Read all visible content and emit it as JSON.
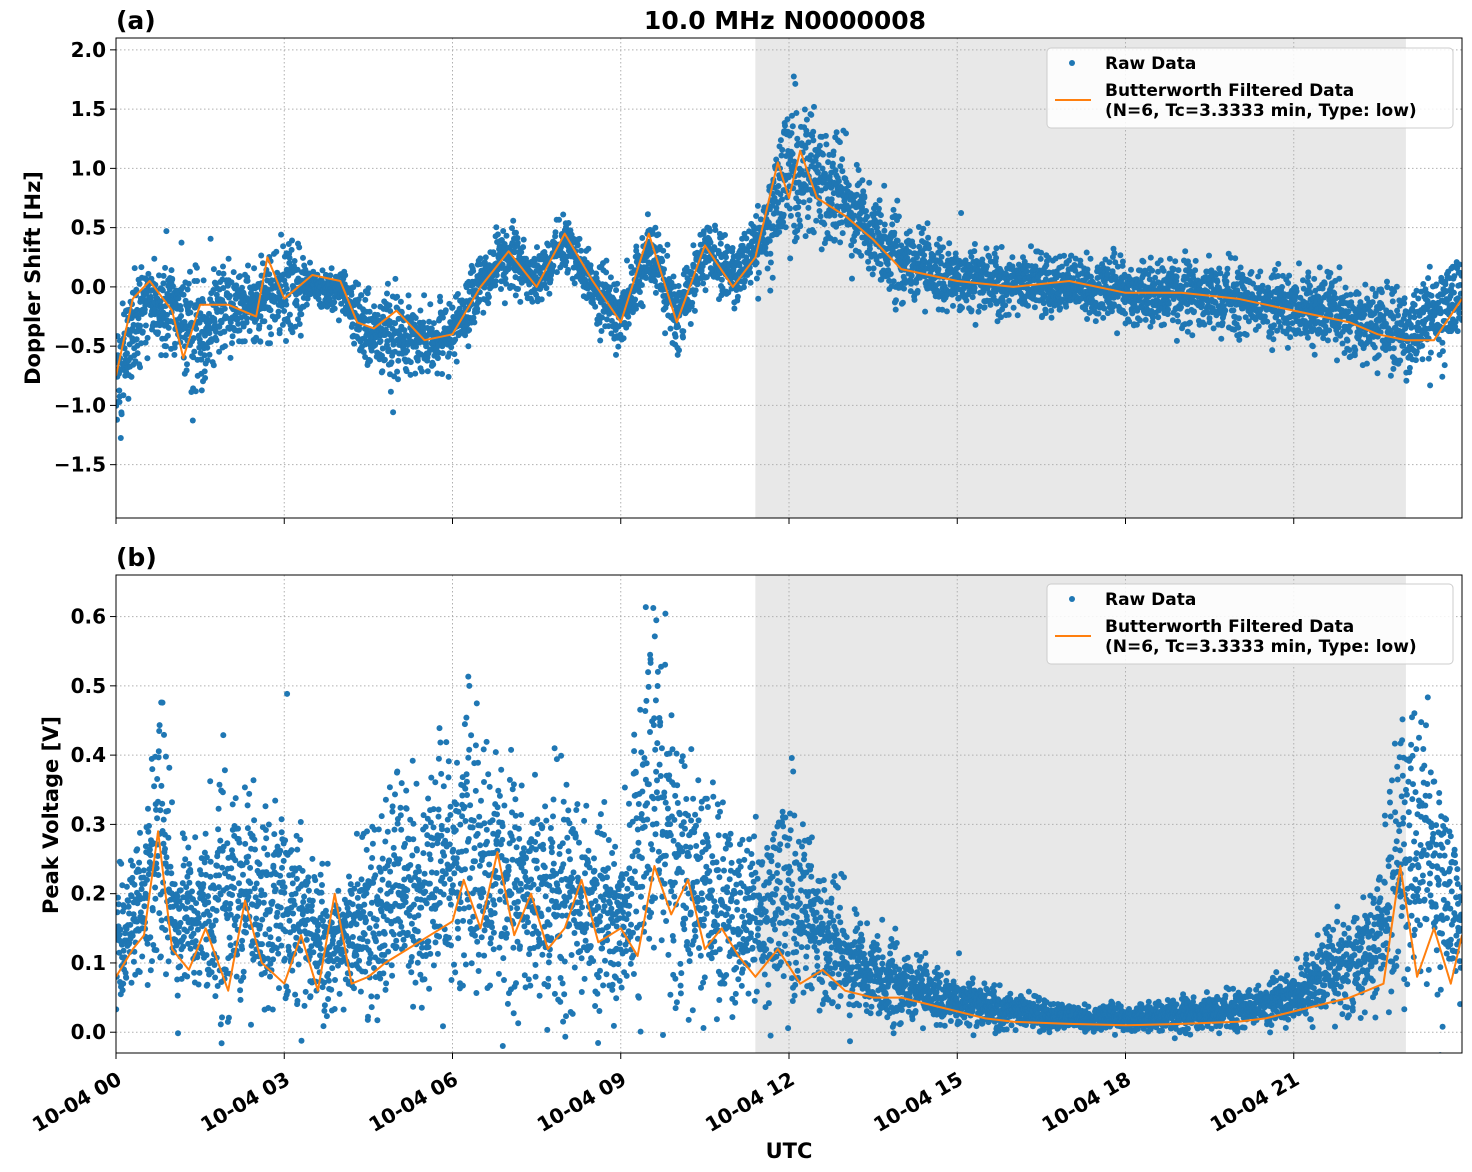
{
  "title": "10.0 MHz N0000008",
  "xlabel": "UTC",
  "x_ticks": [
    "10-04 00",
    "10-04 03",
    "10-04 06",
    "10-04 09",
    "10-04 12",
    "10-04 15",
    "10-04 18",
    "10-04 21"
  ],
  "x_tick_hours": [
    0,
    3,
    6,
    9,
    12,
    15,
    18,
    21
  ],
  "x_range_hours": [
    0,
    24
  ],
  "shaded_hours": [
    11.4,
    23.0
  ],
  "colors": {
    "raw": "#1f77b4",
    "filtered": "#ff7f0e",
    "shade": "#e8e8e8",
    "grid": "#b0b0b0"
  },
  "legend": {
    "raw_label": "Raw Data",
    "filtered_label_line1": "Butterworth Filtered Data",
    "filtered_label_line2": "(N=6, Tc=3.3333 min, Type: low)"
  },
  "chart_data": [
    {
      "panel": "(a)",
      "type": "scatter",
      "ylabel": "Doppler Shift [Hz]",
      "ylim": [
        -1.95,
        2.1
      ],
      "y_ticks": [
        -1.5,
        -1.0,
        -0.5,
        0.0,
        0.5,
        1.0,
        1.5,
        2.0
      ],
      "y_tick_labels": [
        "−1.5",
        "−1.0",
        "−0.5",
        "0.0",
        "0.5",
        "1.0",
        "1.5",
        "2.0"
      ],
      "legend_position": "top-right",
      "grid": true,
      "filtered_series": {
        "x_hours": [
          0,
          0.3,
          0.6,
          1.0,
          1.2,
          1.5,
          2.0,
          2.5,
          2.7,
          3.0,
          3.5,
          4.0,
          4.3,
          4.6,
          5.0,
          5.5,
          6.0,
          6.5,
          7.0,
          7.5,
          8.0,
          8.5,
          9.0,
          9.5,
          10.0,
          10.5,
          11.0,
          11.4,
          11.8,
          12.0,
          12.2,
          12.5,
          13.0,
          13.5,
          14.0,
          15.0,
          16.0,
          17.0,
          18.0,
          19.0,
          20.0,
          21.0,
          22.0,
          22.5,
          23.0,
          23.5,
          24.0
        ],
        "values": [
          -0.75,
          -0.1,
          0.05,
          -0.2,
          -0.6,
          -0.15,
          -0.15,
          -0.25,
          0.25,
          -0.1,
          0.1,
          0.05,
          -0.3,
          -0.35,
          -0.2,
          -0.45,
          -0.4,
          0.0,
          0.3,
          0.0,
          0.45,
          0.05,
          -0.3,
          0.45,
          -0.3,
          0.35,
          0.0,
          0.25,
          1.05,
          0.75,
          1.15,
          0.75,
          0.6,
          0.4,
          0.15,
          0.05,
          0.0,
          0.05,
          -0.05,
          -0.05,
          -0.1,
          -0.2,
          -0.3,
          -0.4,
          -0.45,
          -0.45,
          -0.1
        ]
      },
      "raw_band": {
        "x_hours": [
          0,
          0.5,
          1.0,
          1.5,
          2.0,
          2.5,
          3.0,
          3.5,
          4.0,
          4.5,
          5.0,
          5.5,
          6.0,
          6.5,
          7.0,
          7.5,
          8.0,
          8.5,
          9.0,
          9.5,
          10.0,
          10.5,
          11.0,
          11.5,
          12.0,
          12.5,
          13.0,
          13.5,
          14.0,
          15.0,
          16.0,
          17.0,
          18.0,
          19.0,
          20.0,
          21.0,
          22.0,
          23.0,
          24.0
        ],
        "upper": [
          -0.2,
          0.25,
          0.2,
          0.15,
          0.2,
          0.15,
          0.5,
          0.2,
          0.15,
          -0.05,
          0.0,
          -0.2,
          -0.1,
          0.3,
          0.55,
          0.3,
          0.6,
          0.35,
          0.1,
          0.6,
          0.1,
          0.55,
          0.4,
          0.7,
          1.7,
          1.5,
          1.2,
          0.9,
          0.55,
          0.35,
          0.3,
          0.3,
          0.25,
          0.25,
          0.2,
          0.2,
          0.05,
          0.0,
          0.35
        ],
        "lower": [
          -1.3,
          -0.6,
          -0.5,
          -1.0,
          -0.55,
          -0.5,
          -0.5,
          -0.25,
          -0.2,
          -0.7,
          -0.8,
          -0.7,
          -0.7,
          -0.3,
          0.0,
          -0.2,
          0.2,
          -0.3,
          -0.6,
          0.0,
          -0.6,
          0.0,
          -0.2,
          0.05,
          0.3,
          0.2,
          0.25,
          0.0,
          -0.15,
          -0.25,
          -0.25,
          -0.25,
          -0.35,
          -0.35,
          -0.4,
          -0.5,
          -0.6,
          -0.8,
          -0.5
        ]
      }
    },
    {
      "panel": "(b)",
      "type": "scatter",
      "ylabel": "Peak Voltage [V]",
      "ylim": [
        -0.03,
        0.66
      ],
      "y_ticks": [
        0.0,
        0.1,
        0.2,
        0.3,
        0.4,
        0.5,
        0.6
      ],
      "y_tick_labels": [
        "0.0",
        "0.1",
        "0.2",
        "0.3",
        "0.4",
        "0.5",
        "0.6"
      ],
      "legend_position": "top-right",
      "grid": true,
      "filtered_series": {
        "x_hours": [
          0,
          0.3,
          0.5,
          0.75,
          1.0,
          1.3,
          1.6,
          2.0,
          2.3,
          2.6,
          3.0,
          3.3,
          3.6,
          3.9,
          4.2,
          4.5,
          4.8,
          5.2,
          5.6,
          6.0,
          6.2,
          6.5,
          6.8,
          7.1,
          7.4,
          7.7,
          8.0,
          8.3,
          8.6,
          9.0,
          9.3,
          9.6,
          9.9,
          10.2,
          10.5,
          10.8,
          11.1,
          11.4,
          11.8,
          12.2,
          12.6,
          13.0,
          13.5,
          14.0,
          14.5,
          15.0,
          15.5,
          16.0,
          17.0,
          18.0,
          19.0,
          20.0,
          20.5,
          21.0,
          21.5,
          22.0,
          22.3,
          22.6,
          22.9,
          23.2,
          23.5,
          23.8,
          24.0
        ],
        "values": [
          0.08,
          0.12,
          0.14,
          0.29,
          0.12,
          0.09,
          0.15,
          0.06,
          0.19,
          0.1,
          0.07,
          0.14,
          0.06,
          0.2,
          0.07,
          0.08,
          0.1,
          0.12,
          0.14,
          0.16,
          0.22,
          0.15,
          0.26,
          0.14,
          0.2,
          0.12,
          0.15,
          0.22,
          0.13,
          0.15,
          0.11,
          0.24,
          0.17,
          0.22,
          0.12,
          0.15,
          0.11,
          0.08,
          0.12,
          0.07,
          0.09,
          0.06,
          0.05,
          0.05,
          0.04,
          0.03,
          0.02,
          0.015,
          0.012,
          0.01,
          0.012,
          0.015,
          0.02,
          0.03,
          0.04,
          0.05,
          0.06,
          0.07,
          0.24,
          0.08,
          0.15,
          0.07,
          0.14
        ]
      },
      "raw_band": {
        "x_hours": [
          0,
          0.5,
          0.75,
          1.0,
          1.5,
          2.0,
          2.5,
          3.0,
          3.5,
          4.0,
          4.5,
          5.0,
          5.5,
          6.0,
          6.25,
          6.5,
          7.0,
          7.5,
          8.0,
          8.5,
          9.0,
          9.5,
          10.0,
          10.5,
          11.0,
          11.5,
          12.0,
          12.5,
          13.0,
          13.5,
          14.0,
          15.0,
          16.0,
          17.0,
          18.0,
          19.0,
          20.0,
          21.0,
          22.0,
          22.5,
          23.0,
          23.5,
          24.0
        ],
        "upper": [
          0.22,
          0.3,
          0.55,
          0.3,
          0.3,
          0.38,
          0.32,
          0.35,
          0.25,
          0.22,
          0.3,
          0.4,
          0.38,
          0.42,
          0.55,
          0.45,
          0.38,
          0.35,
          0.38,
          0.36,
          0.3,
          0.62,
          0.48,
          0.36,
          0.32,
          0.3,
          0.38,
          0.26,
          0.2,
          0.16,
          0.12,
          0.08,
          0.06,
          0.04,
          0.04,
          0.05,
          0.06,
          0.1,
          0.18,
          0.22,
          0.55,
          0.45,
          0.24
        ],
        "lower": [
          0.04,
          0.04,
          0.04,
          0.03,
          0.04,
          0.01,
          0.02,
          0.02,
          0.02,
          0.03,
          0.02,
          0.03,
          0.03,
          0.05,
          0.04,
          0.05,
          0.04,
          0.04,
          0.02,
          0.02,
          0.02,
          0.03,
          0.03,
          0.02,
          0.02,
          0.02,
          0.02,
          0.01,
          0.01,
          0.01,
          0.01,
          0.005,
          0.002,
          0.0,
          0.0,
          0.0,
          0.005,
          0.01,
          0.02,
          0.03,
          0.03,
          0.03,
          0.05
        ]
      }
    }
  ]
}
